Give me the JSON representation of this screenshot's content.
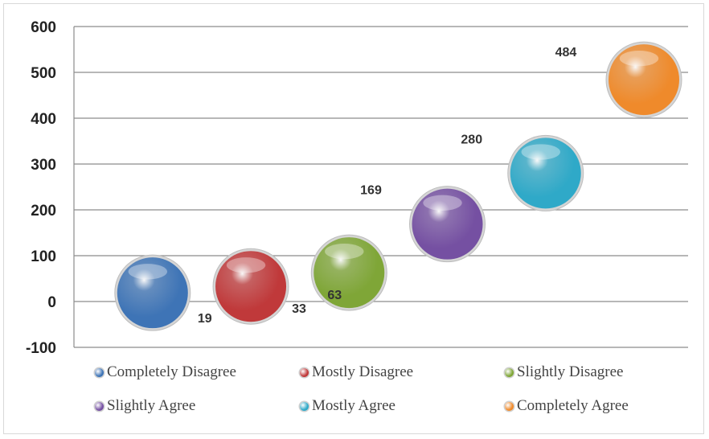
{
  "chart_data": {
    "type": "scatter",
    "categories": [
      "Completely Disagree",
      "Mostly Disagree",
      "Slightly Disagree",
      "Slightly Agree",
      "Mostly Agree",
      "Completely Agree"
    ],
    "values": [
      19,
      33,
      63,
      169,
      280,
      484
    ],
    "data_labels": [
      "19",
      "33",
      "63",
      "169",
      "280",
      "484"
    ],
    "colors": [
      "#3e74b6",
      "#c0393a",
      "#7fa637",
      "#7550a2",
      "#2fa9c8",
      "#ef8a2b"
    ],
    "ylim": [
      -100,
      600
    ],
    "yticks": [
      -100,
      0,
      100,
      200,
      300,
      400,
      500,
      600
    ],
    "ytick_labels": [
      "-100",
      "0",
      "100",
      "200",
      "300",
      "400",
      "500",
      "600"
    ],
    "grid": true,
    "legend_position": "bottom",
    "title": "",
    "xlabel": "",
    "ylabel": ""
  }
}
